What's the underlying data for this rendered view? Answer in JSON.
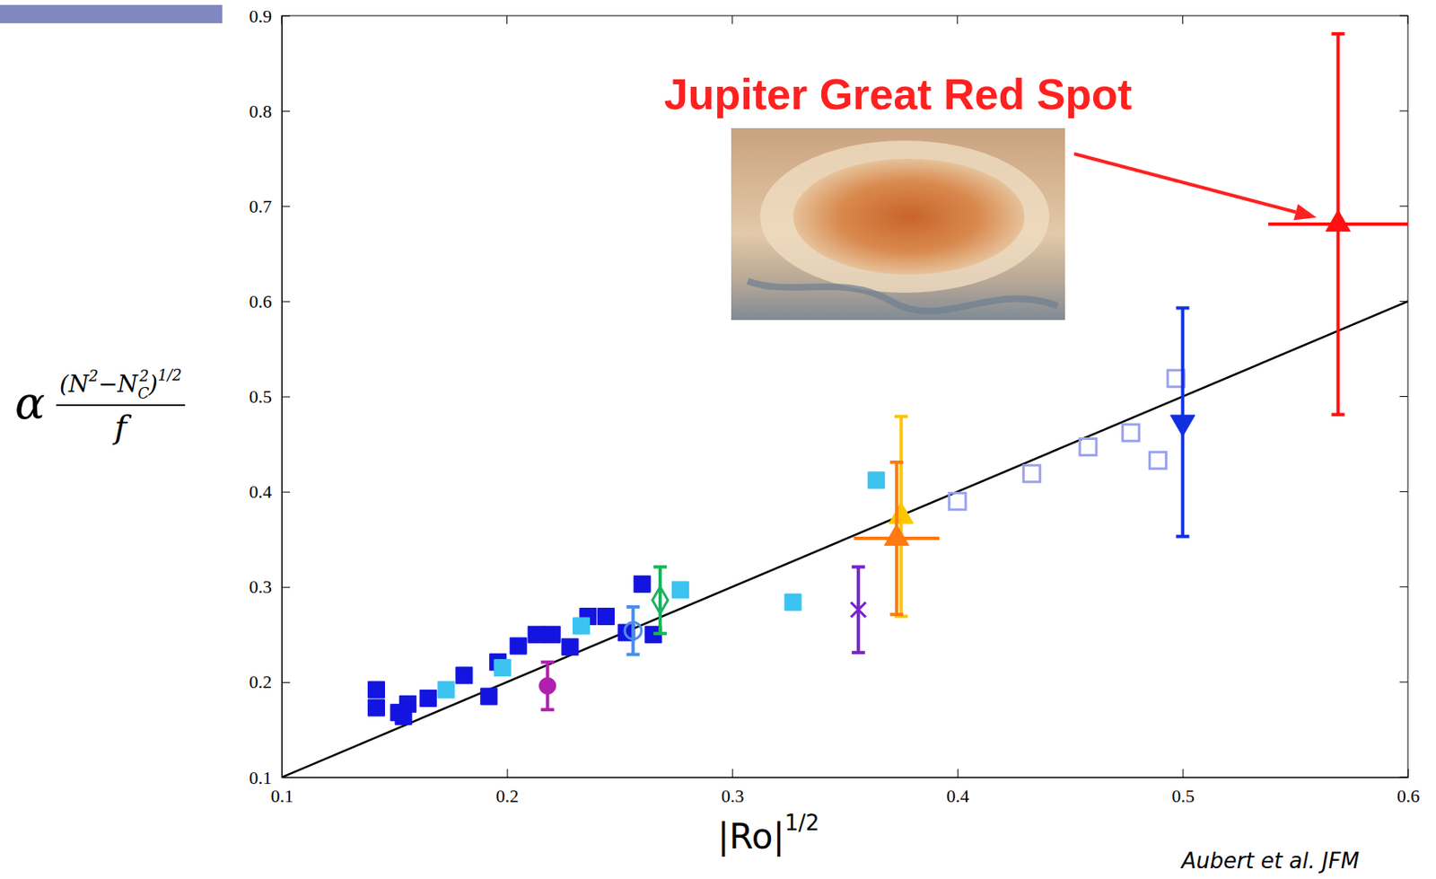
{
  "chart_data": {
    "type": "scatter",
    "annotation": "Jupiter Great Red Spot",
    "source": "Aubert et al. JFM",
    "xlabel": {
      "base": "|Ro|",
      "exponent": "1/2"
    },
    "ylabel": {
      "prefix": "α",
      "numerator_start": "(N",
      "numerator_power": "2",
      "numerator_mid": "−N",
      "numerator_sub": "C",
      "numerator_sub_power": "2",
      "numerator_end": ")",
      "exponent": "1/2",
      "denominator": "f"
    },
    "xlim": [
      0.1,
      0.6
    ],
    "ylim": [
      0.1,
      0.9
    ],
    "xticks": [
      0.1,
      0.2,
      0.3,
      0.4,
      0.5,
      0.6
    ],
    "yticks": [
      0.1,
      0.2,
      0.3,
      0.4,
      0.5,
      0.6,
      0.7,
      0.8,
      0.9
    ],
    "grid": false,
    "series": [
      {
        "type": "line",
        "color": "#000000",
        "line_style": "solid",
        "x": [
          0.1,
          0.6
        ],
        "values": [
          0.1,
          0.6
        ]
      },
      {
        "color": "#1414e0",
        "marker": "square",
        "x": [
          0.142,
          0.142,
          0.152,
          0.154,
          0.156,
          0.165,
          0.181,
          0.192,
          0.196,
          0.205,
          0.213,
          0.22,
          0.228,
          0.236,
          0.244,
          0.253,
          0.26,
          0.265
        ],
        "values": [
          0.173,
          0.192,
          0.168,
          0.164,
          0.177,
          0.183,
          0.207,
          0.185,
          0.221,
          0.238,
          0.25,
          0.25,
          0.237,
          0.269,
          0.269,
          0.252,
          0.303,
          0.25
        ]
      },
      {
        "color": "#3cc3f0",
        "marker": "square",
        "x": [
          0.173,
          0.198,
          0.233,
          0.277,
          0.327,
          0.364
        ],
        "values": [
          0.192,
          0.215,
          0.259,
          0.297,
          0.284,
          0.412
        ]
      },
      {
        "color": "#9aa2ee",
        "marker": "square-open",
        "x": [
          0.4,
          0.433,
          0.458,
          0.477,
          0.489,
          0.497
        ],
        "values": [
          0.39,
          0.419,
          0.447,
          0.462,
          0.433,
          0.519
        ]
      },
      {
        "color": "#b020b0",
        "marker": "circle",
        "x": [
          0.218
        ],
        "values": [
          0.196
        ],
        "y_err": [
          0.025
        ]
      },
      {
        "color": "#4a8ee8",
        "marker": "circle-open",
        "x": [
          0.256
        ],
        "values": [
          0.254
        ],
        "y_err": [
          0.025
        ]
      },
      {
        "color": "#20b060",
        "marker": "diamond-open",
        "x": [
          0.268
        ],
        "values": [
          0.286
        ],
        "y_err": [
          0.035
        ]
      },
      {
        "color": "#7a22d0",
        "marker": "x",
        "x": [
          0.356
        ],
        "values": [
          0.276
        ],
        "y_err": [
          0.045
        ]
      },
      {
        "color": "#ffc400",
        "marker": "triangle-up",
        "x": [
          0.375
        ],
        "values": [
          0.374
        ],
        "y_err": [
          0.105
        ]
      },
      {
        "color": "#ff7a10",
        "marker": "triangle-up",
        "x": [
          0.373
        ],
        "values": [
          0.351
        ],
        "y_err": [
          0.08
        ],
        "x_err": [
          0.019
        ]
      },
      {
        "color": "#1030e0",
        "marker": "triangle-down",
        "x": [
          0.5
        ],
        "values": [
          0.473
        ],
        "y_err": [
          0.12
        ]
      },
      {
        "color": "#ff1010",
        "marker": "triangle-up",
        "x": [
          0.569
        ],
        "values": [
          0.681
        ],
        "y_err": [
          0.2
        ],
        "x_err": [
          0.031
        ]
      }
    ]
  }
}
